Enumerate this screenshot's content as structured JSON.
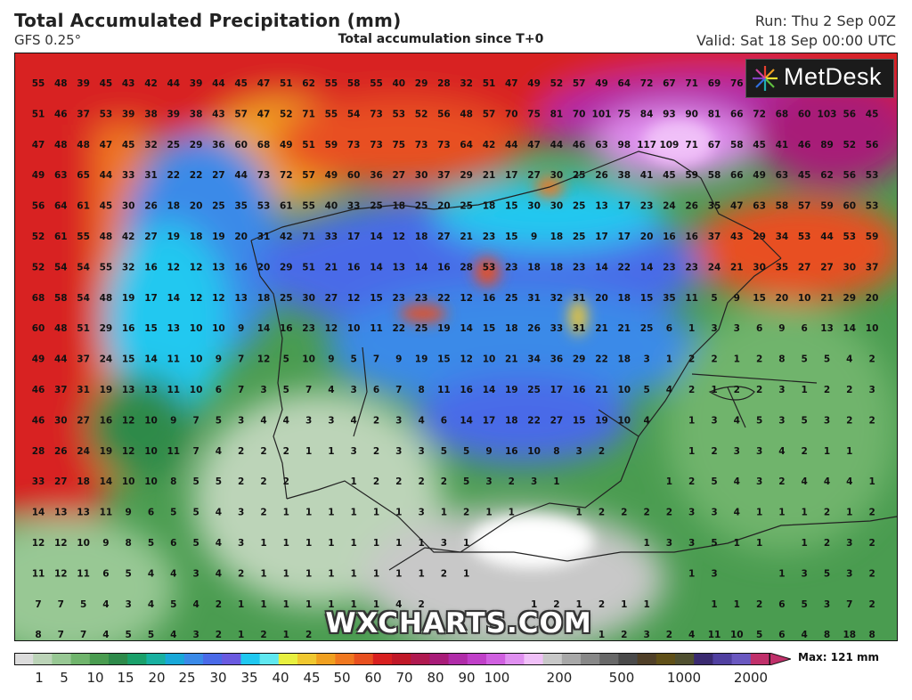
{
  "header": {
    "title": "Total Accumulated Precipitation (mm)",
    "model": "GFS 0.25°",
    "subtitle": "Total accumulation since T+0",
    "run": "Run: Thu 2 Sep 00Z",
    "valid": "Valid: Sat 18 Sep 00:00 UTC"
  },
  "logo": {
    "text": "MetDesk"
  },
  "watermark": "WXCHARTS.COM",
  "legend": {
    "max_label": "Max: 121 mm",
    "ticks": [
      "1",
      "5",
      "10",
      "15",
      "20",
      "25",
      "30",
      "35",
      "40",
      "45",
      "50",
      "60",
      "70",
      "80",
      "90",
      "100",
      "200",
      "500",
      "1000",
      "2000"
    ],
    "colors": [
      "#dcdcdc",
      "#bcd4b8",
      "#98c894",
      "#70b46c",
      "#4a9c50",
      "#2e8a4a",
      "#1aa06a",
      "#18b0a0",
      "#18a8d8",
      "#3a8ae8",
      "#4a6ae8",
      "#6a5ae0",
      "#20c8f0",
      "#60e8f0",
      "#e8f040",
      "#f0c830",
      "#f0a020",
      "#f07820",
      "#e85020",
      "#d82020",
      "#c01828",
      "#b01a50",
      "#a81c78",
      "#b02ca8",
      "#c040c8",
      "#d060e0",
      "#e090f0",
      "#f0c0f8",
      "#c8c8c8",
      "#a8a8a8",
      "#888888",
      "#686868",
      "#4a4a4a",
      "#504028",
      "#605018",
      "#505030",
      "#3a2a70",
      "#5040a0",
      "#6a58c0",
      "#c0306a"
    ]
  },
  "map": {
    "grid": [
      [
        "55",
        "48",
        "39",
        "45",
        "43",
        "42",
        "44",
        "39",
        "44",
        "45",
        "47",
        "51",
        "62",
        "55",
        "58",
        "55",
        "40",
        "29",
        "28",
        "32",
        "51",
        "47",
        "49",
        "52",
        "57",
        "49",
        "64",
        "72",
        "67",
        "71",
        "69",
        "76",
        "",
        "",
        ""
      ],
      [
        "51",
        "46",
        "37",
        "53",
        "39",
        "38",
        "39",
        "38",
        "43",
        "57",
        "47",
        "52",
        "71",
        "55",
        "54",
        "73",
        "53",
        "52",
        "56",
        "48",
        "57",
        "70",
        "75",
        "81",
        "70",
        "101",
        "75",
        "84",
        "93",
        "90",
        "81",
        "66",
        "72",
        "68",
        "60",
        "103",
        "56",
        "45"
      ],
      [
        "47",
        "48",
        "48",
        "47",
        "45",
        "32",
        "25",
        "29",
        "36",
        "60",
        "68",
        "49",
        "51",
        "59",
        "73",
        "73",
        "75",
        "73",
        "73",
        "64",
        "42",
        "44",
        "47",
        "44",
        "46",
        "63",
        "98",
        "117",
        "109",
        "71",
        "67",
        "58",
        "45",
        "41",
        "46",
        "89",
        "52",
        "56"
      ],
      [
        "49",
        "63",
        "65",
        "44",
        "33",
        "31",
        "22",
        "22",
        "27",
        "44",
        "73",
        "72",
        "57",
        "49",
        "60",
        "36",
        "27",
        "30",
        "37",
        "29",
        "21",
        "17",
        "27",
        "30",
        "25",
        "26",
        "38",
        "41",
        "45",
        "59",
        "58",
        "66",
        "49",
        "63",
        "45",
        "62",
        "56",
        "53"
      ],
      [
        "56",
        "64",
        "61",
        "45",
        "30",
        "26",
        "18",
        "20",
        "25",
        "35",
        "53",
        "61",
        "55",
        "40",
        "33",
        "25",
        "18",
        "25",
        "20",
        "25",
        "18",
        "15",
        "30",
        "30",
        "25",
        "13",
        "17",
        "23",
        "24",
        "26",
        "35",
        "47",
        "63",
        "58",
        "57",
        "59",
        "60",
        "53"
      ],
      [
        "52",
        "61",
        "55",
        "48",
        "42",
        "27",
        "19",
        "18",
        "19",
        "20",
        "31",
        "42",
        "71",
        "33",
        "17",
        "14",
        "12",
        "18",
        "27",
        "21",
        "23",
        "15",
        "9",
        "18",
        "25",
        "17",
        "17",
        "20",
        "16",
        "16",
        "37",
        "43",
        "29",
        "34",
        "53",
        "44",
        "53",
        "59"
      ],
      [
        "52",
        "54",
        "54",
        "55",
        "32",
        "16",
        "12",
        "12",
        "13",
        "16",
        "20",
        "29",
        "51",
        "21",
        "16",
        "14",
        "13",
        "14",
        "16",
        "28",
        "53",
        "23",
        "18",
        "18",
        "23",
        "14",
        "22",
        "14",
        "23",
        "23",
        "24",
        "21",
        "30",
        "35",
        "27",
        "27",
        "30",
        "37"
      ],
      [
        "68",
        "58",
        "54",
        "48",
        "19",
        "17",
        "14",
        "12",
        "12",
        "13",
        "18",
        "25",
        "30",
        "27",
        "12",
        "15",
        "23",
        "23",
        "22",
        "12",
        "16",
        "25",
        "31",
        "32",
        "31",
        "20",
        "18",
        "15",
        "35",
        "11",
        "5",
        "9",
        "15",
        "20",
        "10",
        "21",
        "29",
        "20"
      ],
      [
        "60",
        "48",
        "51",
        "29",
        "16",
        "15",
        "13",
        "10",
        "10",
        "9",
        "14",
        "16",
        "23",
        "12",
        "10",
        "11",
        "22",
        "25",
        "19",
        "14",
        "15",
        "18",
        "26",
        "33",
        "31",
        "21",
        "21",
        "25",
        "6",
        "1",
        "3",
        "3",
        "6",
        "9",
        "6",
        "13",
        "14",
        "10",
        "5"
      ],
      [
        "49",
        "44",
        "37",
        "24",
        "15",
        "14",
        "11",
        "10",
        "9",
        "7",
        "12",
        "5",
        "10",
        "9",
        "5",
        "7",
        "9",
        "19",
        "15",
        "12",
        "10",
        "21",
        "34",
        "36",
        "29",
        "22",
        "18",
        "3",
        "1",
        "2",
        "2",
        "1",
        "2",
        "8",
        "5",
        "5",
        "4",
        "2"
      ],
      [
        "46",
        "37",
        "31",
        "19",
        "13",
        "13",
        "11",
        "10",
        "6",
        "7",
        "3",
        "5",
        "7",
        "4",
        "3",
        "6",
        "7",
        "8",
        "11",
        "16",
        "14",
        "19",
        "25",
        "17",
        "16",
        "21",
        "10",
        "5",
        "4",
        "2",
        "1",
        "2",
        "2",
        "3",
        "1",
        "2",
        "2",
        "3"
      ],
      [
        "46",
        "30",
        "27",
        "16",
        "12",
        "10",
        "9",
        "7",
        "5",
        "3",
        "4",
        "4",
        "3",
        "3",
        "4",
        "2",
        "3",
        "4",
        "6",
        "14",
        "17",
        "18",
        "22",
        "27",
        "15",
        "19",
        "10",
        "4",
        "",
        "1",
        "3",
        "4",
        "5",
        "3",
        "5",
        "3",
        "2",
        "2",
        "1"
      ],
      [
        "28",
        "26",
        "24",
        "19",
        "12",
        "10",
        "11",
        "7",
        "4",
        "2",
        "2",
        "2",
        "1",
        "1",
        "3",
        "2",
        "3",
        "3",
        "5",
        "5",
        "9",
        "16",
        "10",
        "8",
        "3",
        "2",
        "",
        "",
        "",
        "1",
        "2",
        "3",
        "3",
        "4",
        "2",
        "1",
        "1"
      ],
      [
        "33",
        "27",
        "18",
        "14",
        "10",
        "10",
        "8",
        "5",
        "5",
        "2",
        "2",
        "2",
        "",
        "",
        "1",
        "2",
        "2",
        "2",
        "2",
        "5",
        "3",
        "2",
        "3",
        "1",
        "",
        "",
        "",
        "",
        "1",
        "2",
        "5",
        "4",
        "3",
        "2",
        "4",
        "4",
        "4",
        "1"
      ],
      [
        "14",
        "13",
        "13",
        "11",
        "9",
        "6",
        "5",
        "5",
        "4",
        "3",
        "2",
        "1",
        "1",
        "1",
        "1",
        "1",
        "1",
        "3",
        "1",
        "2",
        "1",
        "1",
        "",
        "",
        "1",
        "2",
        "2",
        "2",
        "2",
        "3",
        "3",
        "4",
        "1",
        "1",
        "1",
        "2",
        "1",
        "2"
      ],
      [
        "12",
        "12",
        "10",
        "9",
        "8",
        "5",
        "6",
        "5",
        "4",
        "3",
        "1",
        "1",
        "1",
        "1",
        "1",
        "1",
        "1",
        "1",
        "3",
        "1",
        "",
        "",
        "",
        "",
        "",
        "",
        "",
        "1",
        "3",
        "3",
        "5",
        "1",
        "1",
        "",
        "1",
        "2",
        "3",
        "2"
      ],
      [
        "11",
        "12",
        "11",
        "6",
        "5",
        "4",
        "4",
        "3",
        "4",
        "2",
        "1",
        "1",
        "1",
        "1",
        "1",
        "1",
        "1",
        "1",
        "2",
        "1",
        "",
        "",
        "",
        "",
        "",
        "",
        "",
        "",
        "",
        "1",
        "3",
        "",
        "",
        "1",
        "3",
        "5",
        "3",
        "2"
      ],
      [
        "7",
        "7",
        "5",
        "4",
        "3",
        "4",
        "5",
        "4",
        "2",
        "1",
        "1",
        "1",
        "1",
        "1",
        "1",
        "1",
        "4",
        "2",
        "",
        "",
        "",
        "",
        "1",
        "2",
        "1",
        "2",
        "1",
        "1",
        "",
        "",
        "1",
        "1",
        "2",
        "6",
        "5",
        "3",
        "7",
        "2"
      ],
      [
        "8",
        "7",
        "7",
        "4",
        "5",
        "5",
        "4",
        "3",
        "2",
        "1",
        "2",
        "1",
        "2",
        "",
        "",
        "",
        "",
        "",
        "",
        "",
        "",
        "",
        "",
        "",
        "",
        "1",
        "2",
        "3",
        "2",
        "4",
        "11",
        "10",
        "5",
        "6",
        "4",
        "8",
        "18",
        "8"
      ]
    ]
  }
}
